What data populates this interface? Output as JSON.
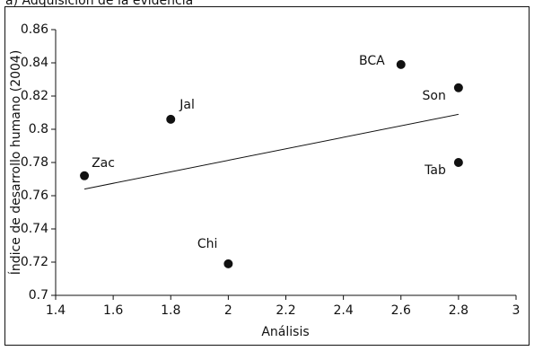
{
  "chart_data": {
    "type": "scatter",
    "title": "a) Adquisición de la evidencia",
    "xlabel": "Análisis",
    "ylabel": "Índice de desarrollo humano (2004)",
    "labels": [
      "Zac",
      "Jal",
      "Chi",
      "BCA",
      "Son",
      "Tab"
    ],
    "x": [
      1.5,
      1.8,
      2.0,
      2.6,
      2.8,
      2.8
    ],
    "values": [
      0.772,
      0.806,
      0.719,
      0.839,
      0.825,
      0.78
    ],
    "color": "#111111",
    "trendline": {
      "x": [
        1.5,
        2.8
      ],
      "y": [
        0.764,
        0.809
      ]
    },
    "xlim": [
      1.4,
      3
    ],
    "xticks": [
      1.4,
      1.6,
      1.8,
      2,
      2.2,
      2.4,
      2.6,
      2.8,
      3
    ],
    "ylim": [
      0.7,
      0.86
    ],
    "yticks": [
      0.7,
      0.72,
      0.74,
      0.76,
      0.78,
      0.8,
      0.82,
      0.84,
      0.86
    ]
  }
}
